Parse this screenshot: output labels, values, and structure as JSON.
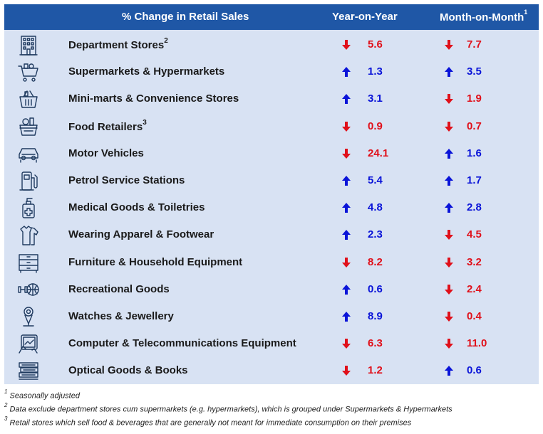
{
  "header": {
    "category_title": "% Change in Retail Sales",
    "yoy_title": "Year-on-Year",
    "mom_title": "Month-on-Month",
    "mom_footnote": "1"
  },
  "colors": {
    "up": "#0a14d8",
    "down": "#e0101a",
    "header_bg": "#1f57a6",
    "table_bg": "#d8e2f3"
  },
  "rows": [
    {
      "label": "Department Stores",
      "footnote": "2",
      "icon": "department-store-icon",
      "yoy": "5.6",
      "yoy_dir": "down",
      "mom": "7.7",
      "mom_dir": "down"
    },
    {
      "label": "Supermarkets & Hypermarkets",
      "footnote": "",
      "icon": "shopping-cart-icon",
      "yoy": "1.3",
      "yoy_dir": "up",
      "mom": "3.5",
      "mom_dir": "up"
    },
    {
      "label": "Mini-marts & Convenience Stores",
      "footnote": "",
      "icon": "shopping-basket-icon",
      "yoy": "3.1",
      "yoy_dir": "up",
      "mom": "1.9",
      "mom_dir": "down"
    },
    {
      "label": "Food Retailers",
      "footnote": "3",
      "icon": "food-basket-icon",
      "yoy": "0.9",
      "yoy_dir": "down",
      "mom": "0.7",
      "mom_dir": "down"
    },
    {
      "label": "Motor Vehicles",
      "footnote": "",
      "icon": "car-icon",
      "yoy": "24.1",
      "yoy_dir": "down",
      "mom": "1.6",
      "mom_dir": "up"
    },
    {
      "label": "Petrol Service Stations",
      "footnote": "",
      "icon": "fuel-pump-icon",
      "yoy": "5.4",
      "yoy_dir": "up",
      "mom": "1.7",
      "mom_dir": "up"
    },
    {
      "label": "Medical Goods & Toiletries",
      "footnote": "",
      "icon": "medical-bottle-icon",
      "yoy": "4.8",
      "yoy_dir": "up",
      "mom": "2.8",
      "mom_dir": "up"
    },
    {
      "label": "Wearing Apparel & Footwear",
      "footnote": "",
      "icon": "clothing-icon",
      "yoy": "2.3",
      "yoy_dir": "up",
      "mom": "4.5",
      "mom_dir": "down"
    },
    {
      "label": "Furniture & Household Equipment",
      "footnote": "",
      "icon": "cabinet-icon",
      "yoy": "8.2",
      "yoy_dir": "down",
      "mom": "3.2",
      "mom_dir": "down"
    },
    {
      "label": "Recreational Goods",
      "footnote": "",
      "icon": "sports-icon",
      "yoy": "0.6",
      "yoy_dir": "up",
      "mom": "2.4",
      "mom_dir": "down"
    },
    {
      "label": "Watches & Jewellery",
      "footnote": "",
      "icon": "jewellery-bust-icon",
      "yoy": "8.9",
      "yoy_dir": "up",
      "mom": "0.4",
      "mom_dir": "down"
    },
    {
      "label": "Computer & Telecommunications Equipment",
      "footnote": "",
      "icon": "tablet-icon",
      "yoy": "6.3",
      "yoy_dir": "down",
      "mom": "11.0",
      "mom_dir": "down"
    },
    {
      "label": "Optical Goods & Books",
      "footnote": "",
      "icon": "books-icon",
      "yoy": "1.2",
      "yoy_dir": "down",
      "mom": "0.6",
      "mom_dir": "up"
    }
  ],
  "footnotes": [
    {
      "mark": "1",
      "text": "Seasonally adjusted"
    },
    {
      "mark": "2",
      "text": "Data exclude department stores cum supermarkets (e.g. hypermarkets), which is grouped under Supermarkets & Hypermarkets"
    },
    {
      "mark": "3",
      "text": "Retail stores which sell food & beverages that are generally not meant for immediate consumption on their premises"
    }
  ]
}
